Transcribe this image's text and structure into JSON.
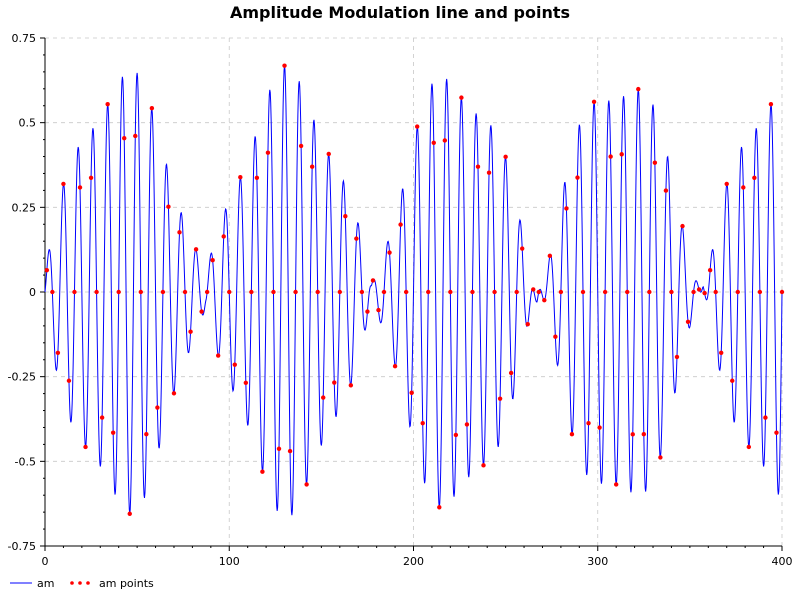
{
  "chart_data": {
    "type": "line",
    "title": "Amplitude Modulation line and points",
    "xlim": [
      0,
      400
    ],
    "ylim": [
      -0.75,
      0.75
    ],
    "x_ticks": [
      0,
      100,
      200,
      300,
      400
    ],
    "x_tick_labels": [
      "0",
      "100",
      "200",
      "300",
      "400"
    ],
    "y_ticks": [
      0.75,
      0.5,
      0.25,
      0,
      -0.25,
      -0.5,
      -0.75
    ],
    "y_tick_labels": [
      "0.75",
      "0.5",
      "0.25",
      "0",
      "-0.25",
      "-0.5",
      "-0.75"
    ],
    "grid": true,
    "legend_position": "bottom-left",
    "series": [
      {
        "name": "am",
        "kind": "line",
        "color": "#0000ff",
        "x_start": 0,
        "x_end": 400,
        "x_step": 0.25,
        "formula": "sin(2*pi*x/8) * (0.62 * |sin(2*pi*x/180 + 0.1)| + 0.05*sin(2*pi*x/40))"
      },
      {
        "name": "am points",
        "kind": "points",
        "color": "#ff0000",
        "x_start": 1,
        "x_end": 400,
        "x_step": 3
      }
    ]
  }
}
